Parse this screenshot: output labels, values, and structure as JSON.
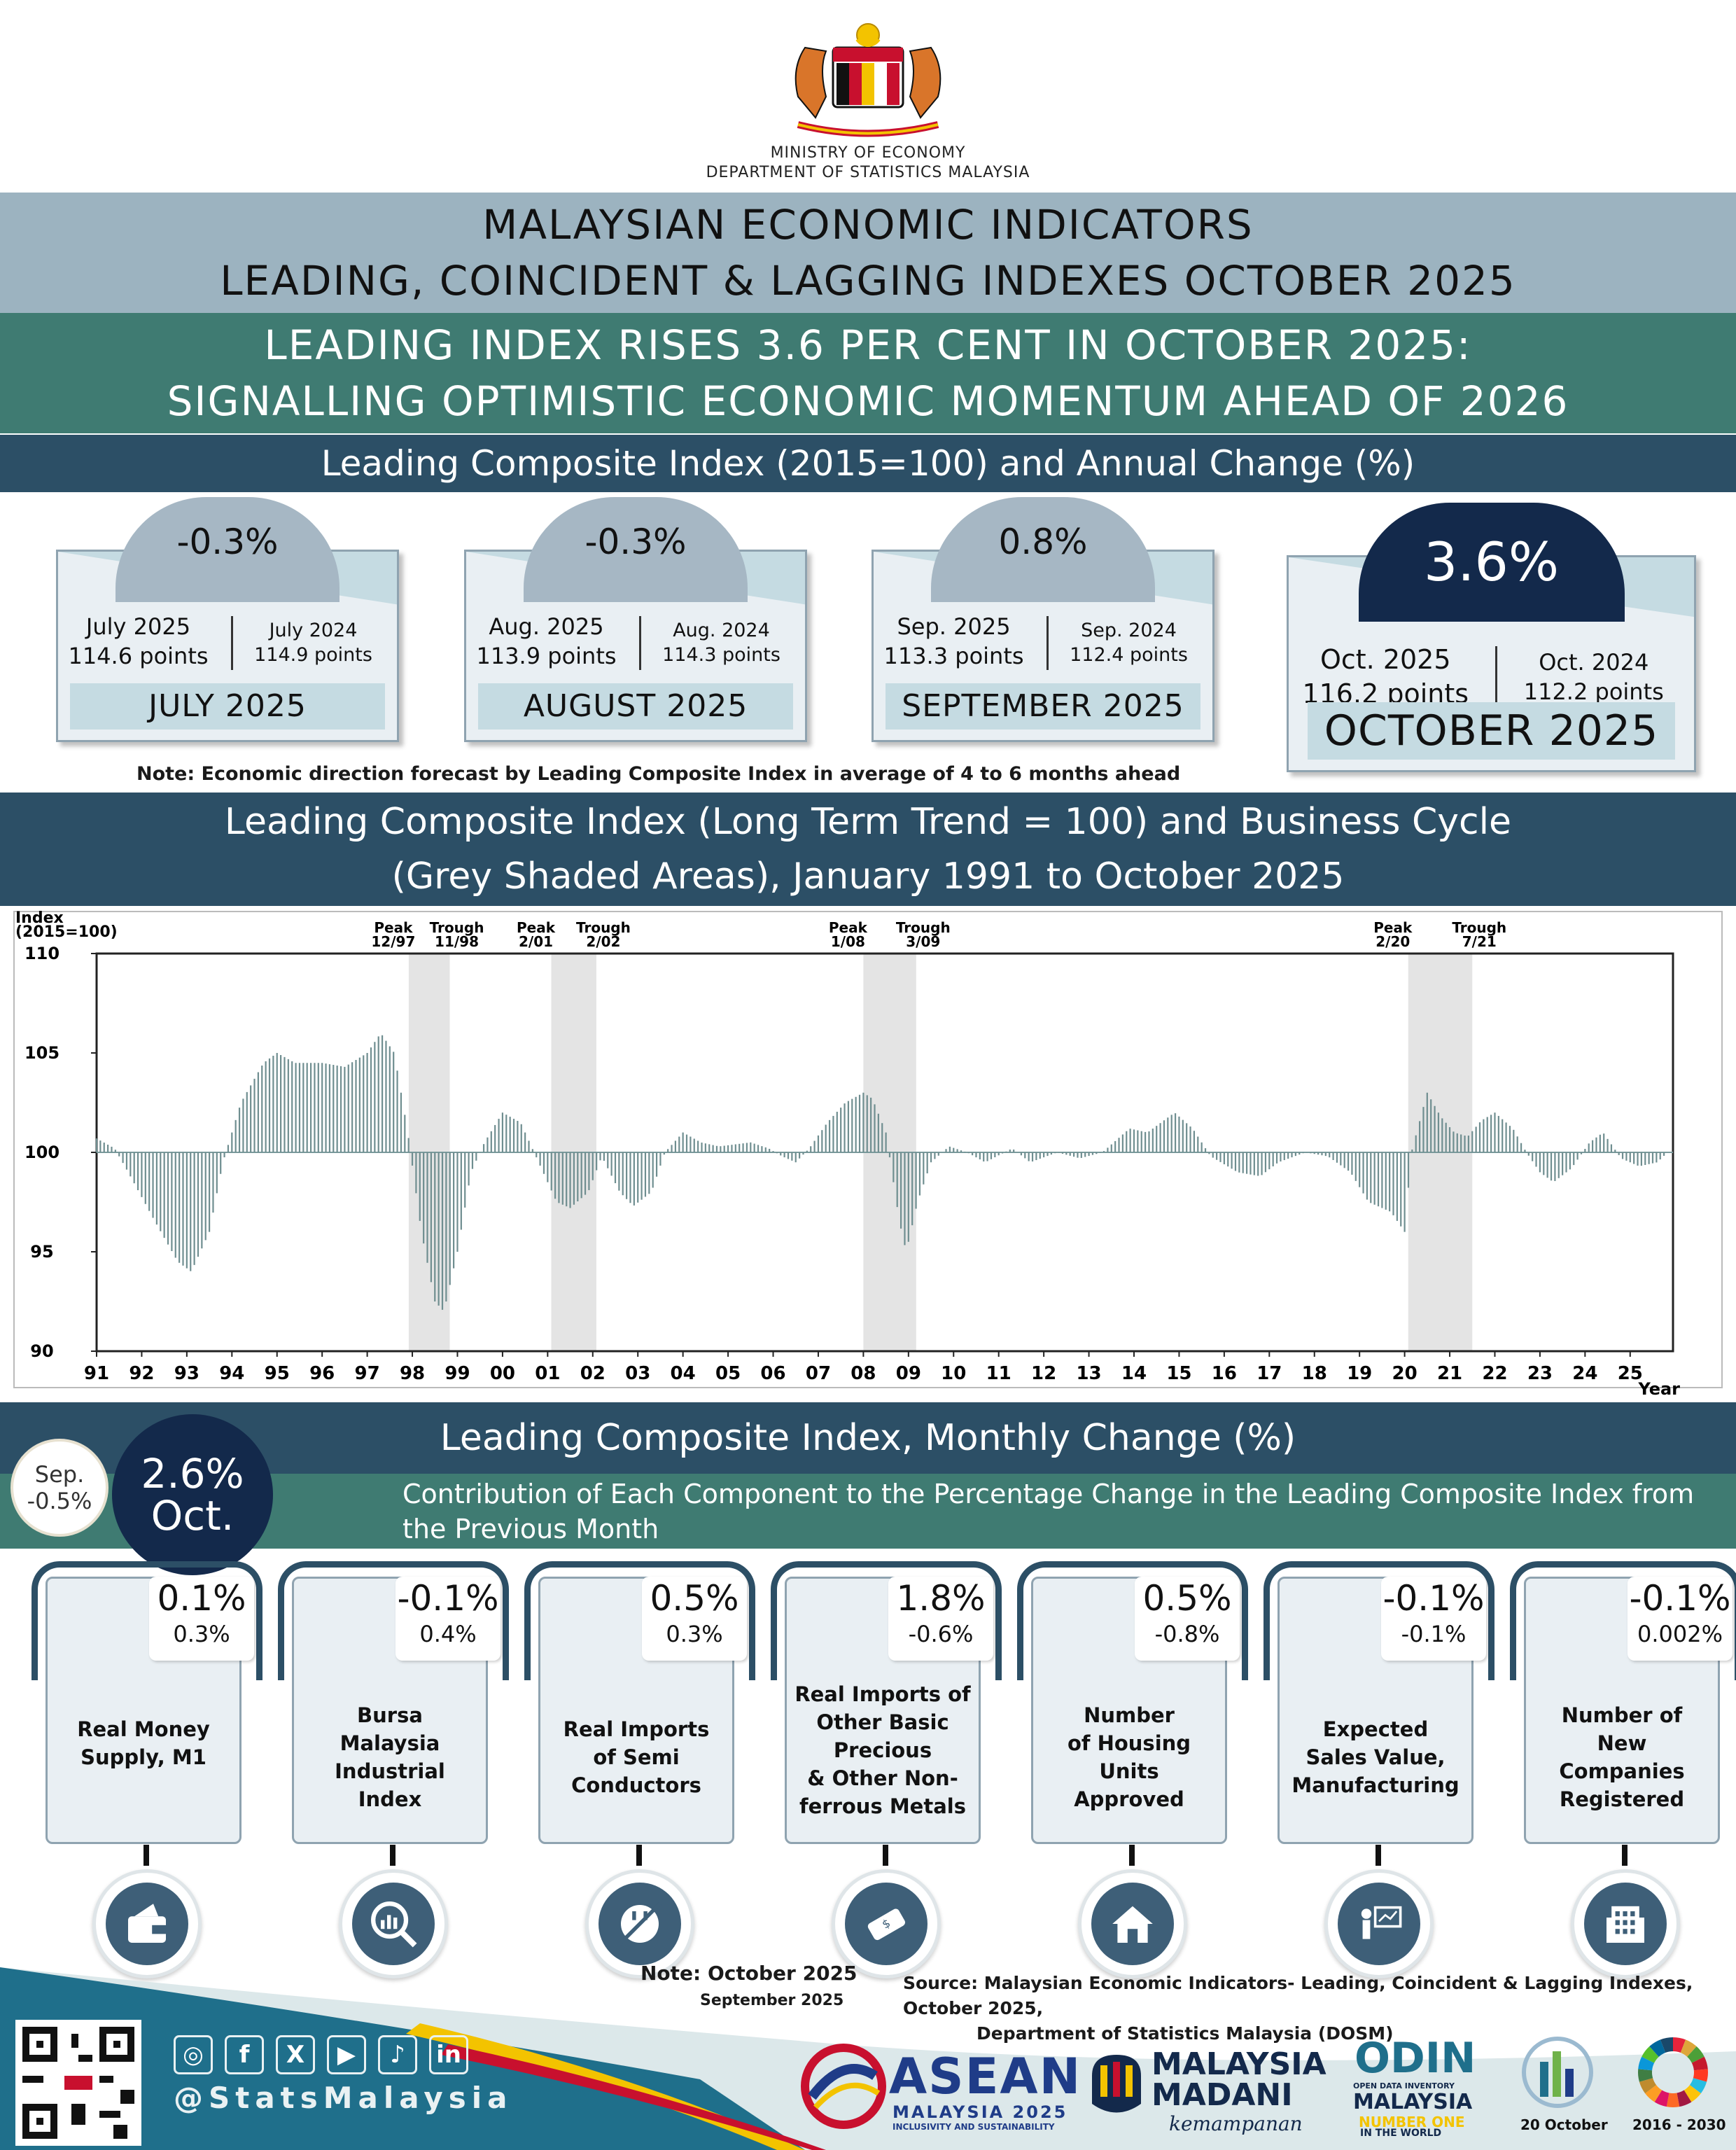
{
  "header": {
    "ministry": "MINISTRY OF ECONOMY",
    "department": "DEPARTMENT OF STATISTICS MALAYSIA",
    "title_line1": "MALAYSIAN ECONOMIC INDICATORS",
    "title_line2": "LEADING, COINCIDENT & LAGGING INDEXES OCTOBER 2025",
    "headline_line1": "LEADING INDEX RISES 3.6 PER CENT IN OCTOBER 2025:",
    "headline_line2": "SIGNALLING OPTIMISTIC ECONOMIC MOMENTUM AHEAD OF 2026",
    "section1": "Leading Composite Index (2015=100) and Annual Change (%)"
  },
  "annual_cards": [
    {
      "pct": "-0.3%",
      "cur_label": "July 2025",
      "cur_points": "114.6 points",
      "prev_label": "July 2024",
      "prev_points": "114.9 points",
      "month": "JULY 2025"
    },
    {
      "pct": "-0.3%",
      "cur_label": "Aug. 2025",
      "cur_points": "113.9 points",
      "prev_label": "Aug. 2024",
      "prev_points": "114.3 points",
      "month": "AUGUST 2025"
    },
    {
      "pct": "0.8%",
      "cur_label": "Sep. 2025",
      "cur_points": "113.3 points",
      "prev_label": "Sep. 2024",
      "prev_points": "112.4 points",
      "month": "SEPTEMBER 2025"
    },
    {
      "pct": "3.6%",
      "cur_label": "Oct. 2025",
      "cur_points": "116.2 points",
      "prev_label": "Oct. 2024",
      "prev_points": "112.2 points",
      "month": "OCTOBER 2025"
    }
  ],
  "note_forecast": "Note: Economic direction forecast by Leading Composite Index in average of 4 to 6 months ahead",
  "chart_section": {
    "title_line1": "Leading Composite Index (Long Term Trend = 100) and Business Cycle",
    "title_line2": "(Grey Shaded Areas), January 1991 to October 2025"
  },
  "chart_data": {
    "type": "bar",
    "ylabel": "Index (2015=100)",
    "xlabel": "Year",
    "ylim": [
      90,
      110
    ],
    "yticks": [
      "110",
      "105",
      "100",
      "95",
      "90"
    ],
    "x_ticks": [
      "91",
      "92",
      "93",
      "94",
      "95",
      "96",
      "97",
      "98",
      "99",
      "00",
      "01",
      "02",
      "03",
      "04",
      "05",
      "06",
      "07",
      "08",
      "09",
      "10",
      "11",
      "12",
      "13",
      "14",
      "15",
      "16",
      "17",
      "18",
      "19",
      "20",
      "21",
      "22",
      "23",
      "24",
      "25"
    ],
    "baseline": 100,
    "recessions": [
      {
        "peak_label": "Peak",
        "peak": "12/97",
        "trough_label": "Trough",
        "trough": "11/98",
        "start": 1997.92,
        "end": 1998.83
      },
      {
        "peak_label": "Peak",
        "peak": "2/01",
        "trough_label": "Trough",
        "trough": "2/02",
        "start": 2001.08,
        "end": 2002.08
      },
      {
        "peak_label": "Peak",
        "peak": "1/08",
        "trough_label": "Trough",
        "trough": "3/09",
        "start": 2008.0,
        "end": 2009.17
      },
      {
        "peak_label": "Peak",
        "peak": "2/20",
        "trough_label": "Trough",
        "trough": "7/21",
        "start": 2020.08,
        "end": 2021.5
      }
    ],
    "anchors": [
      [
        1991.0,
        100.7
      ],
      [
        1991.4,
        100.2
      ],
      [
        1991.7,
        99.0
      ],
      [
        1992.3,
        96.5
      ],
      [
        1992.8,
        94.5
      ],
      [
        1993.1,
        94.0
      ],
      [
        1993.5,
        96.0
      ],
      [
        1993.8,
        99.5
      ],
      [
        1994.2,
        102.5
      ],
      [
        1994.7,
        104.5
      ],
      [
        1995.0,
        105.0
      ],
      [
        1995.4,
        104.5
      ],
      [
        1996.0,
        104.5
      ],
      [
        1996.5,
        104.3
      ],
      [
        1997.0,
        105.0
      ],
      [
        1997.3,
        106.0
      ],
      [
        1997.6,
        105.0
      ],
      [
        1997.9,
        101.0
      ],
      [
        1998.2,
        96.0
      ],
      [
        1998.5,
        92.5
      ],
      [
        1998.7,
        92.0
      ],
      [
        1999.0,
        95.0
      ],
      [
        1999.3,
        99.0
      ],
      [
        1999.6,
        100.5
      ],
      [
        2000.0,
        102.0
      ],
      [
        2000.4,
        101.5
      ],
      [
        2000.8,
        99.5
      ],
      [
        2001.2,
        97.5
      ],
      [
        2001.5,
        97.2
      ],
      [
        2001.9,
        98.0
      ],
      [
        2002.2,
        99.8
      ],
      [
        2002.6,
        98.0
      ],
      [
        2002.9,
        97.3
      ],
      [
        2003.3,
        98.0
      ],
      [
        2003.6,
        100.0
      ],
      [
        2004.0,
        101.0
      ],
      [
        2004.4,
        100.5
      ],
      [
        2004.8,
        100.3
      ],
      [
        2005.5,
        100.5
      ],
      [
        2005.9,
        100.2
      ],
      [
        2006.2,
        99.8
      ],
      [
        2006.5,
        99.5
      ],
      [
        2006.8,
        100.2
      ],
      [
        2007.2,
        101.5
      ],
      [
        2007.6,
        102.5
      ],
      [
        2008.0,
        103.0
      ],
      [
        2008.2,
        102.7
      ],
      [
        2008.5,
        101.0
      ],
      [
        2008.8,
        96.5
      ],
      [
        2008.95,
        95.0
      ],
      [
        2009.2,
        97.5
      ],
      [
        2009.5,
        99.5
      ],
      [
        2009.9,
        100.3
      ],
      [
        2010.3,
        100.0
      ],
      [
        2010.7,
        99.5
      ],
      [
        2011.3,
        100.2
      ],
      [
        2011.7,
        99.5
      ],
      [
        2012.3,
        100.0
      ],
      [
        2012.8,
        99.7
      ],
      [
        2013.3,
        100.0
      ],
      [
        2013.9,
        101.2
      ],
      [
        2014.3,
        101.0
      ],
      [
        2014.9,
        102.0
      ],
      [
        2015.3,
        101.2
      ],
      [
        2015.7,
        99.8
      ],
      [
        2016.3,
        99.0
      ],
      [
        2016.8,
        98.8
      ],
      [
        2017.2,
        99.5
      ],
      [
        2017.8,
        100.0
      ],
      [
        2018.3,
        99.8
      ],
      [
        2018.8,
        99.0
      ],
      [
        2019.2,
        97.5
      ],
      [
        2019.7,
        97.0
      ],
      [
        2020.0,
        96.0
      ],
      [
        2020.15,
        100.0
      ],
      [
        2020.5,
        103.0
      ],
      [
        2020.8,
        101.8
      ],
      [
        2021.1,
        101.0
      ],
      [
        2021.4,
        100.8
      ],
      [
        2021.7,
        101.6
      ],
      [
        2022.0,
        102.0
      ],
      [
        2022.4,
        101.2
      ],
      [
        2022.7,
        100.0
      ],
      [
        2023.0,
        99.0
      ],
      [
        2023.3,
        98.5
      ],
      [
        2023.7,
        99.2
      ],
      [
        2024.1,
        100.5
      ],
      [
        2024.4,
        101.0
      ],
      [
        2024.8,
        99.7
      ],
      [
        2025.2,
        99.3
      ],
      [
        2025.6,
        99.5
      ],
      [
        2025.83,
        100.0
      ]
    ]
  },
  "monthly": {
    "title": "Leading Composite Index, Monthly Change (%)",
    "contrib_title": "Contribution of Each Component to the Percentage Change in the Leading Composite Index from the Previous Month",
    "sep_label": "Sep.",
    "sep_value": "-0.5%",
    "oct_value": "2.6%",
    "oct_label": "Oct."
  },
  "components": [
    {
      "oct": "0.1%",
      "sep": "0.3%",
      "name": [
        "Real Money",
        "Supply, M1"
      ],
      "icon": "wallet-icon"
    },
    {
      "oct": "-0.1%",
      "sep": "0.4%",
      "name": [
        "Bursa",
        "Malaysia",
        "Industrial",
        "Index"
      ],
      "icon": "market-chart-icon"
    },
    {
      "oct": "0.5%",
      "sep": "0.3%",
      "name": [
        "Real Imports",
        "of Semi",
        "Conductors"
      ],
      "icon": "plug-icon"
    },
    {
      "oct": "1.8%",
      "sep": "-0.6%",
      "name": [
        "Real Imports of",
        "Other Basic",
        "Precious",
        "& Other Non-",
        "ferrous Metals"
      ],
      "icon": "metal-bar-icon"
    },
    {
      "oct": "0.5%",
      "sep": "-0.8%",
      "name": [
        "Number",
        "of Housing",
        "Units",
        "Approved"
      ],
      "icon": "house-icon"
    },
    {
      "oct": "-0.1%",
      "sep": "-0.1%",
      "name": [
        "Expected",
        "Sales Value,",
        "Manufacturing"
      ],
      "icon": "presentation-icon"
    },
    {
      "oct": "-0.1%",
      "sep": "0.002%",
      "name": [
        "Number of",
        "New",
        "Companies",
        "Registered"
      ],
      "icon": "building-icon"
    }
  ],
  "footer": {
    "note_title": "Note: October 2025",
    "note_sub": "September 2025",
    "source_line1": "Source: Malaysian Economic Indicators- Leading, Coincident & Lagging Indexes, October 2025,",
    "source_line2": "Department of Statistics Malaysia (DOSM)",
    "handle": "@StatsMalaysia",
    "social": [
      "instagram-icon",
      "facebook-icon",
      "x-icon",
      "youtube-icon",
      "tiktok-icon",
      "linkedin-icon"
    ],
    "logos": {
      "asean_1": "ASEAN",
      "asean_2": "MALAYSIA 2025",
      "asean_3": "INCLUSIVITY AND SUSTAINABILITY",
      "madani_1": "MALAYSIA",
      "madani_2": "MADANI",
      "madani_3": "kemampanan",
      "odin_1": "ODIN",
      "odin_2": "OPEN DATA INVENTORY",
      "odin_3": "MALAYSIA",
      "odin_4": "NUMBER ONE",
      "odin_5": "IN THE WORLD",
      "stats_day": "20 October",
      "sdg": "2016 - 2030"
    }
  },
  "colors": {
    "navy": "#13294b",
    "teal": "#3f7b72",
    "slate": "#2c4f66",
    "grey_blue": "#9cb3c0",
    "bar": "#6f8e90"
  }
}
